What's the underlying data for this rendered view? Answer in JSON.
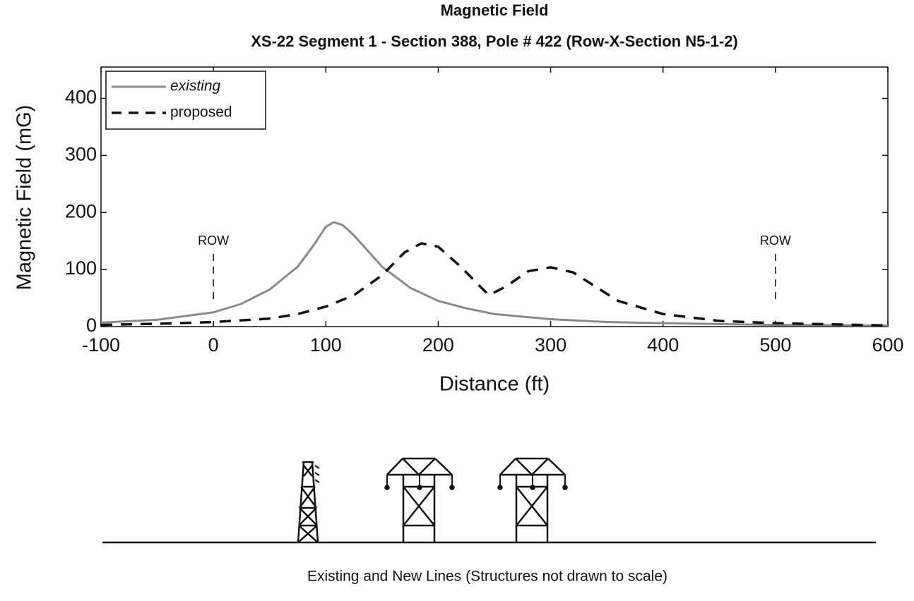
{
  "chart_data": {
    "type": "line",
    "title": "Magnetic Field",
    "subtitle": "XS-22 Segment 1 - Section 388, Pole # 422 (Row-X-Section N5-1-2)",
    "x_label": "Distance (ft)",
    "y_label": "Magnetic Field (mG)",
    "xlim": [
      -100,
      600
    ],
    "xticks": [
      -100,
      0,
      100,
      200,
      300,
      400,
      500,
      600
    ],
    "ylim": [
      0,
      455
    ],
    "yticks": [
      0,
      100,
      200,
      300,
      400
    ],
    "grid": false,
    "legend": "upper left",
    "series": [
      {
        "name": "existing",
        "color": "#8a8a8a",
        "dash": "solid",
        "x": [
          -100,
          -50,
          0,
          25,
          50,
          75,
          90,
          100,
          107,
          115,
          125,
          150,
          175,
          200,
          225,
          250,
          300,
          350,
          400,
          500,
          600
        ],
        "values": [
          7,
          12,
          25,
          40,
          65,
          105,
          145,
          175,
          183,
          178,
          160,
          105,
          68,
          45,
          32,
          22,
          13,
          8,
          6,
          3,
          2
        ]
      },
      {
        "name": "proposed",
        "color": "#111111",
        "dash": "dashed",
        "x": [
          -100,
          -50,
          0,
          50,
          75,
          100,
          125,
          150,
          170,
          185,
          200,
          220,
          245,
          260,
          280,
          300,
          320,
          340,
          360,
          400,
          450,
          500,
          600
        ],
        "values": [
          3,
          5,
          8,
          14,
          22,
          35,
          55,
          90,
          130,
          146,
          140,
          105,
          55,
          70,
          97,
          104,
          95,
          70,
          45,
          22,
          10,
          6,
          2
        ]
      }
    ],
    "annotations": [
      {
        "text": "ROW",
        "x": 0
      },
      {
        "text": "ROW",
        "x": 500
      }
    ],
    "caption": "Existing and New Lines (Structures not drawn to scale)"
  }
}
